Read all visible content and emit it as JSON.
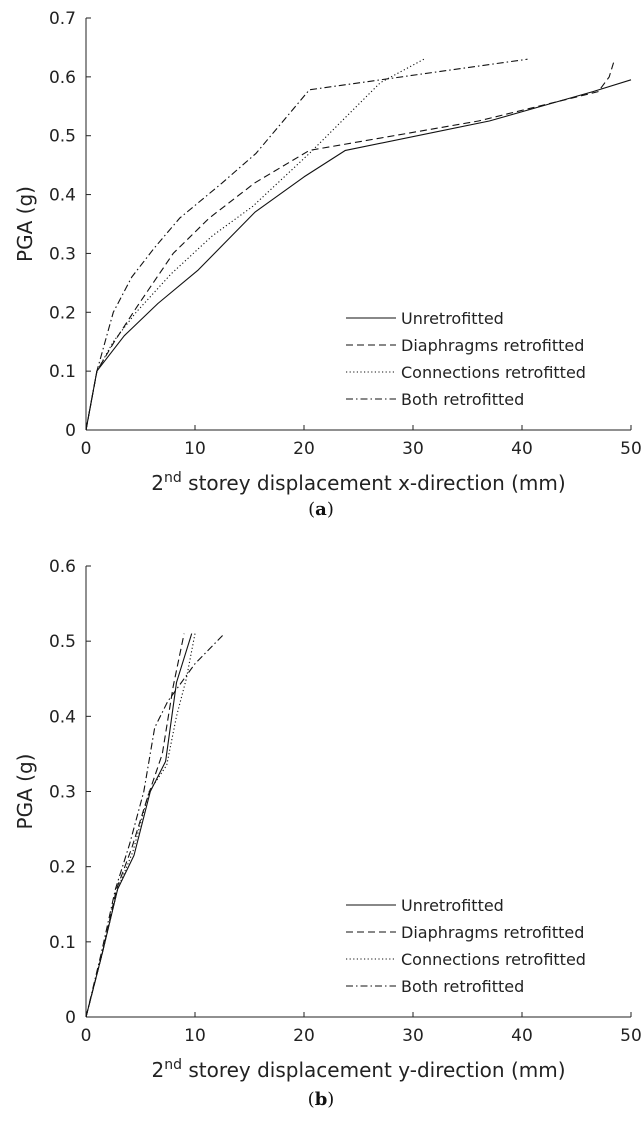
{
  "chart_data": [
    {
      "type": "line",
      "caption_letter": "a",
      "xlabel_sup": "nd",
      "xlabel_base": "2",
      "xlabel_rest": " storey displacement x-direction (mm)",
      "ylabel": "PGA (g)",
      "xlim": [
        0,
        50
      ],
      "ylim": [
        0,
        0.7
      ],
      "xticks": [
        "0",
        "10",
        "20",
        "30",
        "40",
        "50"
      ],
      "yticks": [
        "0",
        "0.1",
        "0.2",
        "0.3",
        "0.4",
        "0.5",
        "0.6",
        "0.7"
      ],
      "xtick_values": [
        0,
        10,
        20,
        30,
        40,
        50
      ],
      "ytick_values": [
        0,
        0.1,
        0.2,
        0.3,
        0.4,
        0.5,
        0.6,
        0.7
      ],
      "grid": false,
      "legend_position": "bottom-right",
      "series": [
        {
          "name": "Unretrofitted",
          "style": "solid",
          "points": [
            [
              0,
              0
            ],
            [
              1,
              0.1
            ],
            [
              3.5,
              0.16
            ],
            [
              6.6,
              0.215
            ],
            [
              10.3,
              0.272
            ],
            [
              15.5,
              0.37
            ],
            [
              20,
              0.43
            ],
            [
              23.8,
              0.475
            ],
            [
              37,
              0.525
            ],
            [
              46.5,
              0.575
            ],
            [
              50,
              0.595
            ]
          ]
        },
        {
          "name": "Diaphragms retrofitted",
          "style": "dashed",
          "points": [
            [
              0,
              0
            ],
            [
              1,
              0.1
            ],
            [
              2.6,
              0.15
            ],
            [
              4.7,
              0.21
            ],
            [
              8,
              0.3
            ],
            [
              11.3,
              0.36
            ],
            [
              15.5,
              0.42
            ],
            [
              20.5,
              0.475
            ],
            [
              36,
              0.525
            ],
            [
              47,
              0.575
            ],
            [
              48,
              0.6
            ],
            [
              48.5,
              0.63
            ]
          ]
        },
        {
          "name": "Connections retrofitted",
          "style": "dotted",
          "points": [
            [
              0,
              0
            ],
            [
              1,
              0.1
            ],
            [
              2.5,
              0.15
            ],
            [
              4.6,
              0.2
            ],
            [
              7.8,
              0.265
            ],
            [
              11.6,
              0.33
            ],
            [
              15.3,
              0.38
            ],
            [
              20.5,
              0.47
            ],
            [
              27,
              0.59
            ],
            [
              31,
              0.63
            ]
          ]
        },
        {
          "name": "Both retrofitted",
          "style": "dashdot",
          "points": [
            [
              0,
              0
            ],
            [
              1,
              0.1
            ],
            [
              2.5,
              0.2
            ],
            [
              4.2,
              0.26
            ],
            [
              6.3,
              0.31
            ],
            [
              8.6,
              0.36
            ],
            [
              12.5,
              0.42
            ],
            [
              15.6,
              0.47
            ],
            [
              20.5,
              0.578
            ],
            [
              40.5,
              0.63
            ]
          ]
        }
      ]
    },
    {
      "type": "line",
      "caption_letter": "b",
      "xlabel_sup": "nd",
      "xlabel_base": "2",
      "xlabel_rest": " storey displacement y-direction (mm)",
      "ylabel": "PGA (g)",
      "xlim": [
        0,
        50
      ],
      "ylim": [
        0,
        0.6
      ],
      "xticks": [
        "0",
        "10",
        "20",
        "30",
        "40",
        "50"
      ],
      "yticks": [
        "0",
        "0.1",
        "0.2",
        "0.3",
        "0.4",
        "0.5",
        "0.6"
      ],
      "xtick_values": [
        0,
        10,
        20,
        30,
        40,
        50
      ],
      "ytick_values": [
        0,
        0.1,
        0.2,
        0.3,
        0.4,
        0.5,
        0.6
      ],
      "grid": false,
      "legend_position": "bottom-right",
      "series": [
        {
          "name": "Unretrofitted",
          "style": "solid",
          "points": [
            [
              0,
              0
            ],
            [
              1.5,
              0.085
            ],
            [
              2.9,
              0.17
            ],
            [
              4.4,
              0.215
            ],
            [
              5.9,
              0.3
            ],
            [
              7.3,
              0.34
            ],
            [
              8.3,
              0.445
            ],
            [
              9.7,
              0.51
            ]
          ]
        },
        {
          "name": "Diaphragms retrofitted",
          "style": "dashed",
          "points": [
            [
              0,
              0
            ],
            [
              1.5,
              0.085
            ],
            [
              2.8,
              0.17
            ],
            [
              4.2,
              0.225
            ],
            [
              5.6,
              0.29
            ],
            [
              7,
              0.35
            ],
            [
              8,
              0.44
            ],
            [
              9,
              0.51
            ]
          ]
        },
        {
          "name": "Connections retrofitted",
          "style": "dotted",
          "points": [
            [
              0,
              0
            ],
            [
              1.5,
              0.085
            ],
            [
              2.9,
              0.17
            ],
            [
              4.3,
              0.22
            ],
            [
              5.8,
              0.3
            ],
            [
              7.4,
              0.335
            ],
            [
              8.3,
              0.4
            ],
            [
              9.2,
              0.45
            ],
            [
              10,
              0.51
            ]
          ]
        },
        {
          "name": "Both retrofitted",
          "style": "dashdot",
          "points": [
            [
              0,
              0
            ],
            [
              1.4,
              0.085
            ],
            [
              2.7,
              0.17
            ],
            [
              4,
              0.23
            ],
            [
              5.3,
              0.3
            ],
            [
              6.3,
              0.385
            ],
            [
              7.5,
              0.42
            ],
            [
              10,
              0.47
            ],
            [
              12.7,
              0.51
            ]
          ]
        }
      ]
    }
  ]
}
